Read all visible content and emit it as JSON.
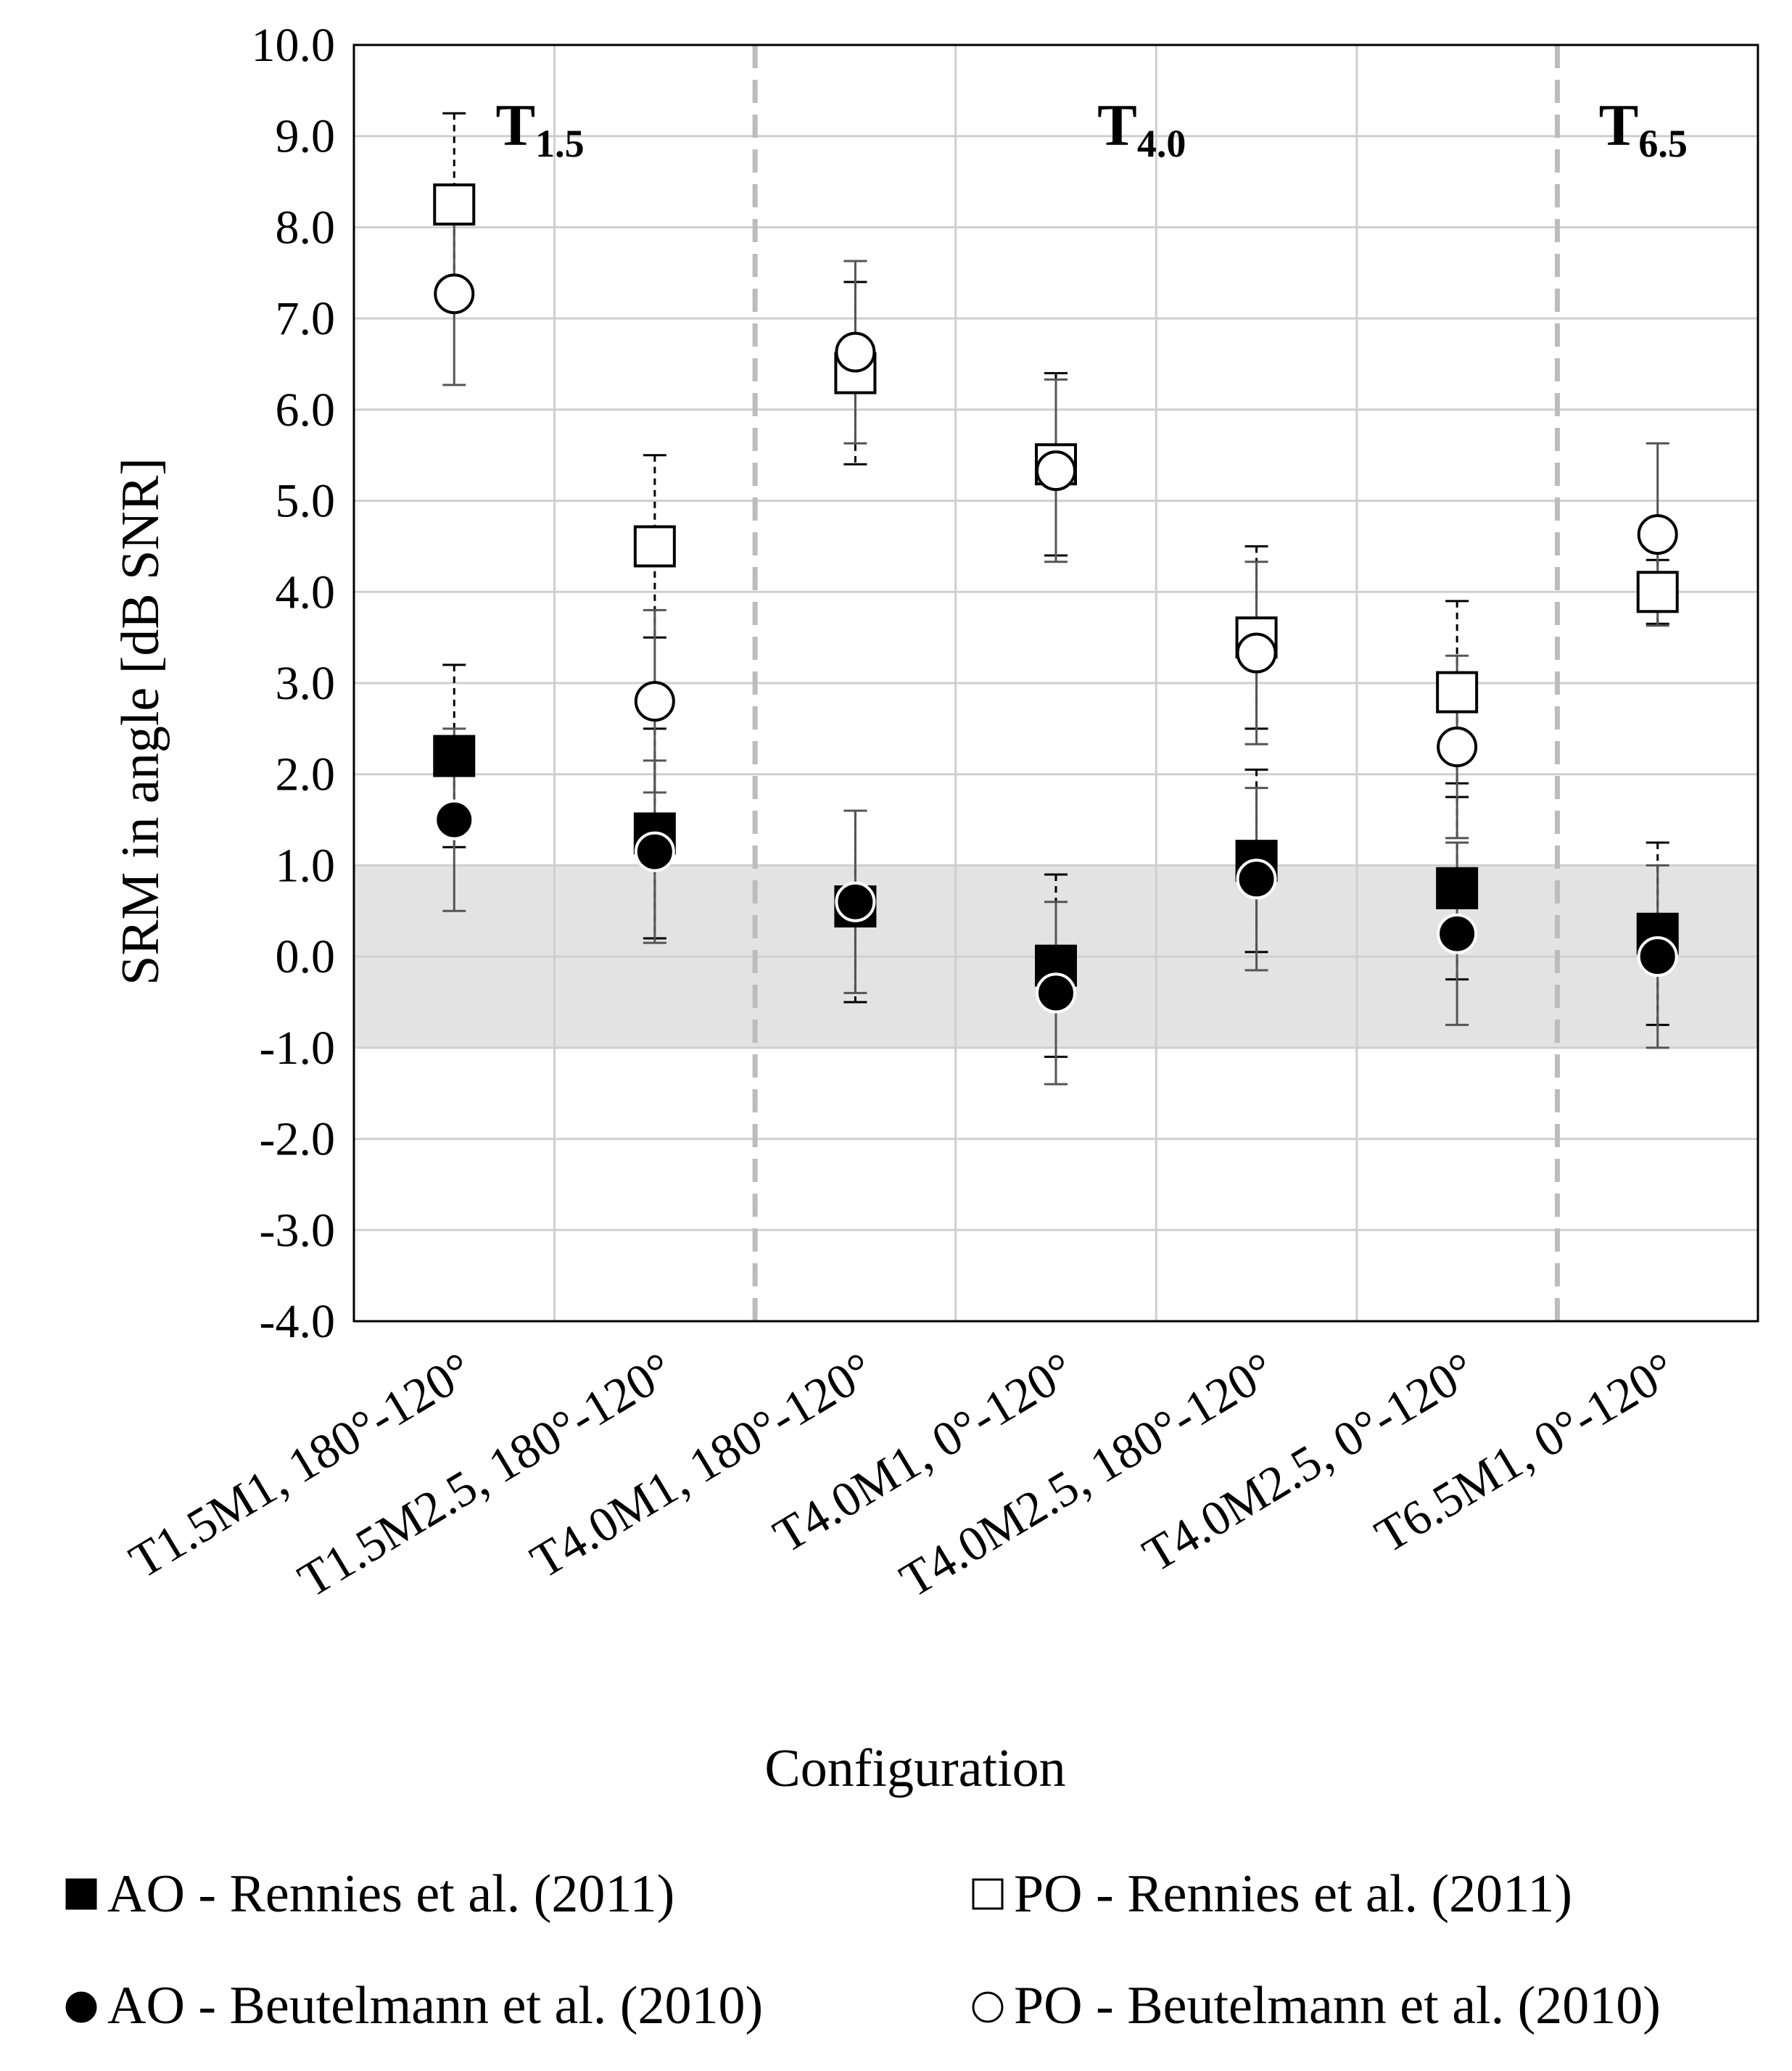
{
  "chart_data": {
    "type": "scatter",
    "xlabel": "Configuration",
    "ylabel": "SRM in angle [dB SNR]",
    "ylim": [
      -4.0,
      10.0
    ],
    "ytick_step": 1.0,
    "ytick_labels": [
      "-4.0",
      "-3.0",
      "-2.0",
      "-1.0",
      "0.0",
      "1.0",
      "2.0",
      "3.0",
      "4.0",
      "5.0",
      "6.0",
      "7.0",
      "8.0",
      "9.0",
      "10.0"
    ],
    "grid": true,
    "shaded_band": [
      -1.0,
      1.0
    ],
    "categories": [
      "T1.5M1, 180°-120°",
      "T1.5M2.5, 180°-120°",
      "T4.0M1, 180°-120°",
      "T4.0M1, 0°-120°",
      "T4.0M2.5, 180°-120°",
      "T4.0M2.5, 0°-120°",
      "T6.5M1, 0°-120°"
    ],
    "group_labels": [
      {
        "main": "T",
        "sub": "1.5",
        "center_category": 0.5
      },
      {
        "main": "T",
        "sub": "4.0",
        "center_category": 3.5
      },
      {
        "main": "T",
        "sub": "6.5",
        "center_category": 6
      }
    ],
    "group_dividers_after_category": [
      1,
      5
    ],
    "series": [
      {
        "name": "AO - Rennies et al. (2011)",
        "marker": "square",
        "fill": "#000000",
        "values": [
          2.2,
          1.35,
          0.55,
          -0.1,
          1.05,
          0.75,
          0.25
        ],
        "err": [
          1.0,
          1.15,
          1.05,
          1.0,
          1.0,
          1.0,
          1.0
        ],
        "err_style": "dashed"
      },
      {
        "name": "PO - Rennies et al. (2011)",
        "marker": "square",
        "fill": "#ffffff",
        "values": [
          8.25,
          4.5,
          6.4,
          5.4,
          3.5,
          2.9,
          4.0
        ],
        "err": [
          1.0,
          1.0,
          1.0,
          1.0,
          1.0,
          1.0,
          0.35
        ],
        "err_style": "dashed"
      },
      {
        "name": "AO - Beutelmann et al. (2010)",
        "marker": "circle",
        "fill": "#000000",
        "values": [
          1.5,
          1.15,
          0.6,
          -0.4,
          0.85,
          0.25,
          0.0
        ],
        "err": [
          1.0,
          1.0,
          1.0,
          1.0,
          1.0,
          1.0,
          1.0
        ],
        "err_style": "solid"
      },
      {
        "name": "PO - Beutelmann et al. (2010)",
        "marker": "circle",
        "fill": "#ffffff",
        "values": [
          7.27,
          2.8,
          6.63,
          5.33,
          3.33,
          2.3,
          4.63
        ],
        "err": [
          1.0,
          1.0,
          1.0,
          1.0,
          1.0,
          1.0,
          1.0
        ],
        "err_style": "solid"
      }
    ]
  }
}
